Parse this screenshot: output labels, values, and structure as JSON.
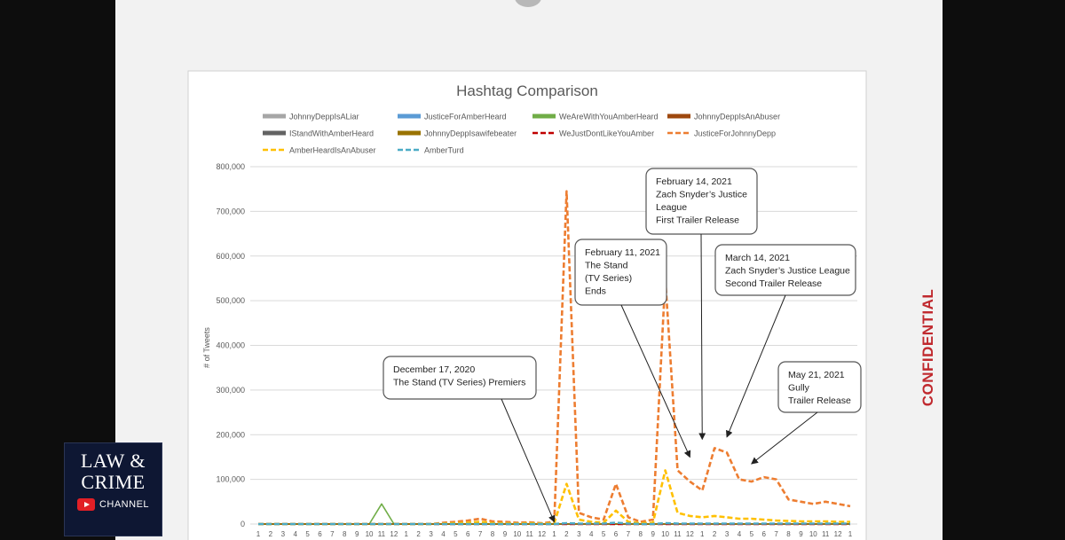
{
  "watermark": "CONFIDENTIAL",
  "logo": {
    "line1": "LAW",
    "amp": "&",
    "line2": "CRIME",
    "channel": "CHANNEL"
  },
  "chart_data": {
    "type": "line",
    "title": "Hashtag Comparison",
    "xlabel": "",
    "ylabel": "# of Tweets",
    "ylim": [
      0,
      800000
    ],
    "yticks": [
      "0",
      "100,000",
      "200,000",
      "300,000",
      "400,000",
      "500,000",
      "600,000",
      "700,000",
      "800,000"
    ],
    "categories": [
      "1",
      "2",
      "3",
      "4",
      "5",
      "6",
      "7",
      "8",
      "9",
      "10",
      "11",
      "12",
      "1",
      "2",
      "3",
      "4",
      "5",
      "6",
      "7",
      "8",
      "9",
      "10",
      "11",
      "12",
      "1",
      "2",
      "3",
      "4",
      "5",
      "6",
      "7",
      "8",
      "9",
      "10",
      "11",
      "12",
      "1",
      "2",
      "3",
      "4",
      "5",
      "6",
      "7",
      "8",
      "9",
      "10",
      "11",
      "12",
      "1"
    ],
    "grid": true,
    "legend_position": "top",
    "series": [
      {
        "name": "JohnnyDeppIsALiar",
        "color": "#a6a6a6",
        "style": "solid",
        "values": [
          0,
          0,
          0,
          0,
          0,
          0,
          0,
          0,
          0,
          0,
          0,
          0,
          0,
          0,
          0,
          0,
          0,
          0,
          0,
          0,
          0,
          0,
          0,
          0,
          0,
          0,
          0,
          0,
          0,
          0,
          0,
          0,
          0,
          0,
          0,
          0,
          0,
          0,
          0,
          0,
          0,
          0,
          0,
          0,
          0,
          0,
          0,
          0,
          0
        ]
      },
      {
        "name": "JusticeForAmberHeard",
        "color": "#5b9bd5",
        "style": "solid",
        "values": [
          0,
          0,
          0,
          0,
          0,
          0,
          0,
          0,
          0,
          0,
          0,
          0,
          0,
          0,
          0,
          0,
          0,
          0,
          0,
          0,
          0,
          0,
          0,
          0,
          0,
          0,
          0,
          0,
          0,
          0,
          0,
          0,
          0,
          0,
          0,
          0,
          0,
          0,
          0,
          0,
          0,
          0,
          0,
          0,
          0,
          0,
          0,
          0,
          0
        ]
      },
      {
        "name": "WeAreWithYouAmberHeard",
        "color": "#70ad47",
        "style": "solid",
        "values": [
          0,
          0,
          0,
          0,
          0,
          0,
          0,
          0,
          0,
          0,
          45000,
          0,
          0,
          0,
          0,
          0,
          0,
          0,
          0,
          0,
          0,
          0,
          0,
          0,
          0,
          0,
          0,
          0,
          0,
          0,
          0,
          0,
          0,
          0,
          0,
          0,
          0,
          0,
          0,
          0,
          0,
          0,
          0,
          0,
          0,
          0,
          0,
          0,
          0
        ]
      },
      {
        "name": "JohnnyDeppIsAnAbuser",
        "color": "#9e480e",
        "style": "solid",
        "values": [
          0,
          0,
          0,
          0,
          0,
          0,
          0,
          0,
          0,
          0,
          0,
          0,
          0,
          0,
          0,
          0,
          0,
          0,
          0,
          0,
          0,
          0,
          0,
          0,
          0,
          0,
          0,
          0,
          0,
          0,
          0,
          0,
          0,
          0,
          0,
          0,
          0,
          0,
          0,
          0,
          0,
          0,
          0,
          0,
          0,
          0,
          0,
          0,
          0
        ]
      },
      {
        "name": "IStandWithAmberHeard",
        "color": "#636363",
        "style": "solid",
        "values": [
          0,
          0,
          0,
          0,
          0,
          0,
          0,
          0,
          0,
          0,
          0,
          0,
          0,
          0,
          0,
          0,
          0,
          0,
          0,
          0,
          0,
          0,
          0,
          0,
          0,
          0,
          0,
          0,
          0,
          0,
          0,
          0,
          0,
          0,
          0,
          0,
          0,
          0,
          0,
          0,
          0,
          0,
          0,
          0,
          0,
          0,
          0,
          0,
          0
        ]
      },
      {
        "name": "JohnnyDeppIsawifebeater",
        "color": "#997300",
        "style": "solid",
        "values": [
          0,
          0,
          0,
          0,
          0,
          0,
          0,
          0,
          0,
          0,
          0,
          0,
          0,
          0,
          0,
          0,
          0,
          0,
          0,
          0,
          0,
          0,
          0,
          0,
          0,
          0,
          0,
          0,
          0,
          0,
          0,
          0,
          0,
          0,
          0,
          0,
          0,
          0,
          0,
          0,
          0,
          0,
          0,
          0,
          0,
          0,
          0,
          0,
          0
        ]
      },
      {
        "name": "WeJustDontLikeYouAmber",
        "color": "#c00000",
        "style": "dashed",
        "values": [
          0,
          0,
          0,
          0,
          0,
          0,
          0,
          0,
          0,
          0,
          0,
          0,
          0,
          0,
          0,
          0,
          0,
          0,
          0,
          0,
          0,
          0,
          0,
          0,
          0,
          0,
          0,
          0,
          0,
          0,
          0,
          0,
          0,
          0,
          0,
          0,
          0,
          0,
          0,
          0,
          0,
          0,
          0,
          0,
          0,
          0,
          0,
          0,
          0
        ]
      },
      {
        "name": "JusticeForJohnnyDepp",
        "color": "#ed7d31",
        "style": "dashed",
        "values": [
          0,
          0,
          0,
          0,
          0,
          0,
          0,
          0,
          0,
          0,
          0,
          0,
          0,
          0,
          0,
          3000,
          5000,
          8000,
          12000,
          6000,
          5000,
          3000,
          4000,
          2000,
          5000,
          745000,
          25000,
          15000,
          10000,
          90000,
          15000,
          5000,
          10000,
          550000,
          120000,
          95000,
          75000,
          170000,
          160000,
          100000,
          95000,
          105000,
          100000,
          55000,
          50000,
          45000,
          50000,
          45000,
          40000
        ]
      },
      {
        "name": "AmberHeardIsAnAbuser",
        "color": "#ffc000",
        "style": "dashed",
        "values": [
          0,
          0,
          0,
          0,
          0,
          0,
          0,
          0,
          0,
          0,
          0,
          0,
          0,
          0,
          0,
          1000,
          2000,
          3000,
          5000,
          2000,
          2000,
          1000,
          2000,
          1000,
          2000,
          90000,
          10000,
          5000,
          3000,
          30000,
          5000,
          2000,
          3000,
          120000,
          25000,
          18000,
          15000,
          18000,
          15000,
          12000,
          12000,
          10000,
          8000,
          7000,
          6000,
          6000,
          6000,
          5000,
          5000
        ]
      },
      {
        "name": "AmberTurd",
        "color": "#4bacc6",
        "style": "dashed",
        "values": [
          0,
          0,
          0,
          0,
          0,
          0,
          0,
          0,
          0,
          0,
          0,
          0,
          0,
          0,
          0,
          0,
          0,
          0,
          0,
          0,
          0,
          0,
          0,
          0,
          0,
          2000,
          1000,
          1000,
          1000,
          3000,
          1000,
          0,
          0,
          2000,
          1000,
          1000,
          1000,
          1000,
          1000,
          1000,
          1000,
          1000,
          1000,
          1000,
          1000,
          1000,
          1000,
          1000,
          1000
        ]
      }
    ],
    "annotations": [
      {
        "lines": [
          "December 17, 2020",
          "The Stand (TV Series) Premiers"
        ],
        "points_to": {
          "x_index": 24,
          "y": 5000
        }
      },
      {
        "lines": [
          "February 11, 2021",
          "The Stand",
          "(TV Series)",
          "Ends"
        ],
        "points_to": {
          "x_index": 35,
          "y": 150000
        }
      },
      {
        "lines": [
          "February 14, 2021",
          "Zach Snyder’s Justice",
          "League",
          "First Trailer Release"
        ],
        "points_to": {
          "x_index": 36,
          "y": 190000
        }
      },
      {
        "lines": [
          "March 14, 2021",
          "Zach Snyder’s Justice League",
          "Second Trailer Release"
        ],
        "points_to": {
          "x_index": 38,
          "y": 195000
        }
      },
      {
        "lines": [
          "May 21, 2021",
          "Gully",
          "Trailer Release"
        ],
        "points_to": {
          "x_index": 40,
          "y": 135000
        }
      }
    ]
  }
}
